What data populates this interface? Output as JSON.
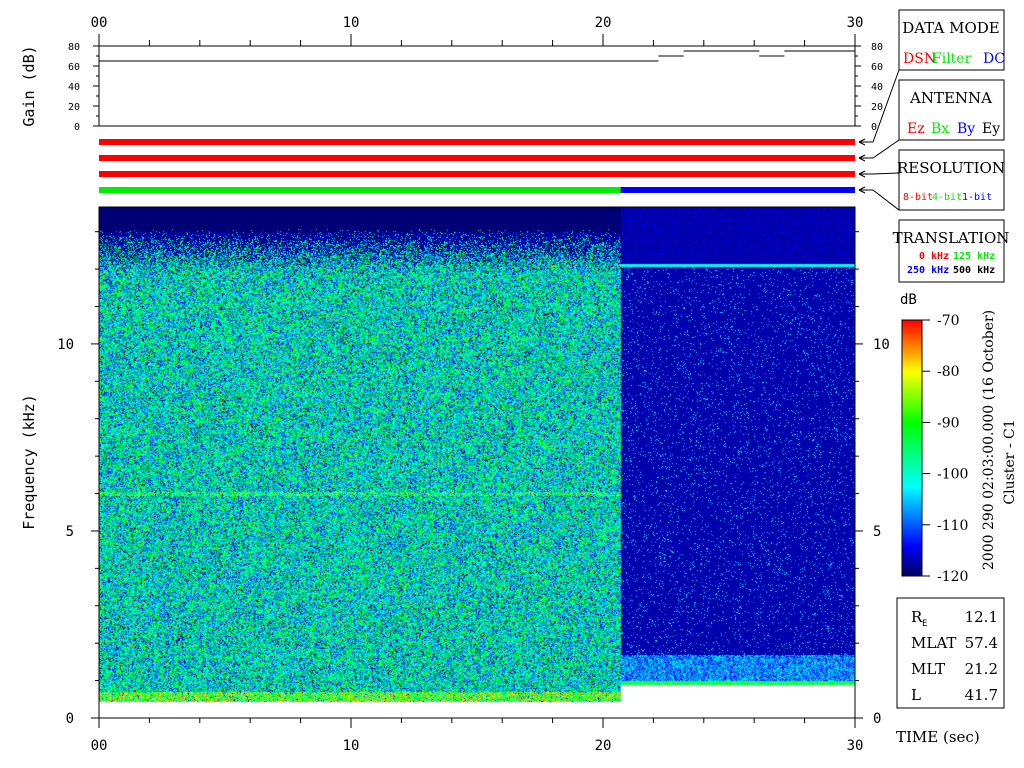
{
  "chart_data": {
    "type": "heatmap",
    "time_axis": {
      "label": "TIME (sec)",
      "range": [
        0,
        30
      ],
      "ticks": [
        "00",
        "10",
        "20",
        "30"
      ]
    },
    "gain_panel": {
      "ylabel": "Gain (dB)",
      "ylim": [
        0,
        80
      ],
      "ticks": [
        "0",
        "20",
        "40",
        "60",
        "80"
      ],
      "steps": [
        {
          "t0": 0,
          "t1": 22.2,
          "gain": 65
        },
        {
          "t0": 22.2,
          "t1": 23.2,
          "gain": 70
        },
        {
          "t0": 23.2,
          "t1": 26.2,
          "gain": 75
        },
        {
          "t0": 26.2,
          "t1": 27.2,
          "gain": 70
        },
        {
          "t0": 27.2,
          "t1": 30,
          "gain": 75
        }
      ]
    },
    "status_bars": [
      {
        "label": "data-mode",
        "segments": [
          {
            "t0": 0,
            "t1": 30,
            "color": "#ff0000"
          }
        ]
      },
      {
        "label": "antenna",
        "segments": [
          {
            "t0": 0,
            "t1": 30,
            "color": "#ff0000"
          }
        ]
      },
      {
        "label": "resolution",
        "segments": [
          {
            "t0": 0,
            "t1": 30,
            "color": "#ff0000"
          }
        ]
      },
      {
        "label": "translation",
        "segments": [
          {
            "t0": 0,
            "t1": 20.7,
            "color": "#00ee00"
          },
          {
            "t0": 20.7,
            "t1": 30,
            "color": "#0000ff"
          }
        ]
      }
    ],
    "spectrogram": {
      "ylabel": "Frequency (kHz)",
      "ylim": [
        0,
        13.66
      ],
      "yticks": [
        "0",
        "5",
        "10"
      ],
      "ytick_values": [
        0,
        5,
        10
      ],
      "regions": [
        {
          "t0": 0,
          "t1": 20.7,
          "f_min": 0.45,
          "f_max": 12.3,
          "level_db": -100
        },
        {
          "t0": 20.7,
          "t1": 30,
          "f_min": 0.9,
          "f_max": 13.66,
          "level_db": -117,
          "band": {
            "f0": 0.9,
            "f1": 1.7,
            "level_db": -108
          },
          "line_khz": 12.1
        }
      ]
    },
    "colorbar": {
      "label": "dB",
      "range": [
        -120,
        -70
      ],
      "ticks": [
        "-70",
        "-80",
        "-90",
        "-100",
        "-110",
        "-120"
      ],
      "tick_values": [
        -70,
        -80,
        -90,
        -100,
        -110,
        -120
      ]
    }
  },
  "legend_boxes": {
    "data_mode": {
      "title": "DATA MODE",
      "items": [
        {
          "text": "DSN",
          "color": "#ff0000"
        },
        {
          "text": "Filter",
          "color": "#00ee00"
        },
        {
          "text": "DC",
          "color": "#0000ff"
        }
      ]
    },
    "antenna": {
      "title": "ANTENNA",
      "items": [
        {
          "text": "Ez",
          "color": "#ff0000"
        },
        {
          "text": "Bx",
          "color": "#00ee00"
        },
        {
          "text": "By",
          "color": "#0000ff"
        },
        {
          "text": "Ey",
          "color": "#000000"
        }
      ]
    },
    "resolution": {
      "title": "RESOLUTION",
      "items": [
        {
          "text": "8-bit",
          "color": "#ff0000"
        },
        {
          "text": "4-bit",
          "color": "#00ee00"
        },
        {
          "text": "1-bit",
          "color": "#0000ff"
        }
      ]
    },
    "translation": {
      "title": "TRANSLATION",
      "items": [
        {
          "text": "0 kHz",
          "color": "#ff0000"
        },
        {
          "text": "125 kHz",
          "color": "#00ee00"
        },
        {
          "text": "250 kHz",
          "color": "#0000ff"
        },
        {
          "text": "500 kHz",
          "color": "#000000"
        }
      ]
    }
  },
  "info": {
    "re_label": "R",
    "re_sub": "E",
    "re_value": "12.1",
    "mlat_label": "MLAT",
    "mlat_value": "57.4",
    "mlt_label": "MLT",
    "mlt_value": "21.2",
    "l_label": "L",
    "l_value": "41.7"
  },
  "date_text": "2000 290 02:03:00.000 (16 October)",
  "spacecraft": "Cluster - C1"
}
